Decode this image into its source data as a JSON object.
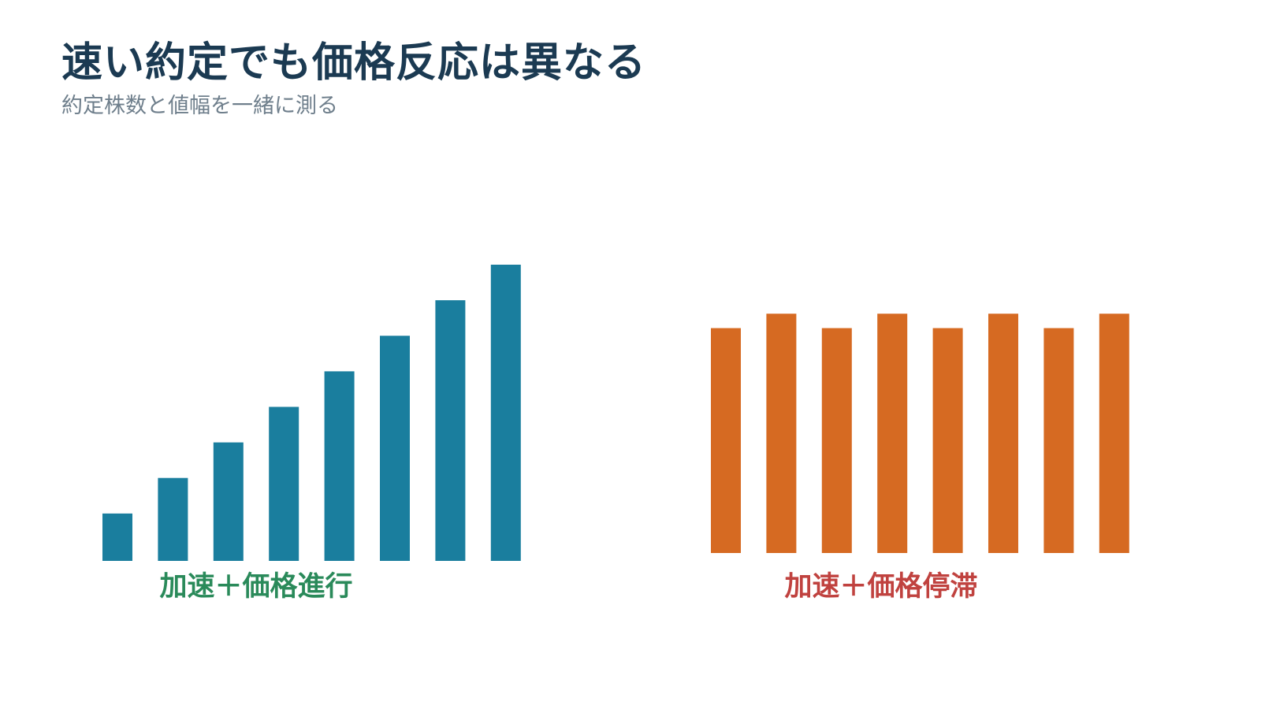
{
  "title": "速い約定でも価格反応は異なる",
  "subtitle": "約定株数と値幅を一緒に測る",
  "colors": {
    "title": "#1b3a52",
    "subtitle": "#6f7f8c",
    "accelerate_bars": "#1a7e9e",
    "stall_bars": "#d66a22",
    "accelerate_caption": "#2a8a5a",
    "stall_caption": "#c0423f"
  },
  "chart_data": [
    {
      "type": "bar",
      "caption": "加速＋価格進行",
      "values": [
        1.6,
        2.8,
        4.0,
        5.2,
        6.4,
        7.6,
        8.8,
        10.0
      ],
      "ylim": [
        0,
        10
      ]
    },
    {
      "type": "bar",
      "caption": "加速＋価格停滞",
      "values": [
        7.8,
        8.3,
        7.8,
        8.3,
        7.8,
        8.3,
        7.8,
        8.3
      ],
      "ylim": [
        0,
        10
      ]
    }
  ]
}
